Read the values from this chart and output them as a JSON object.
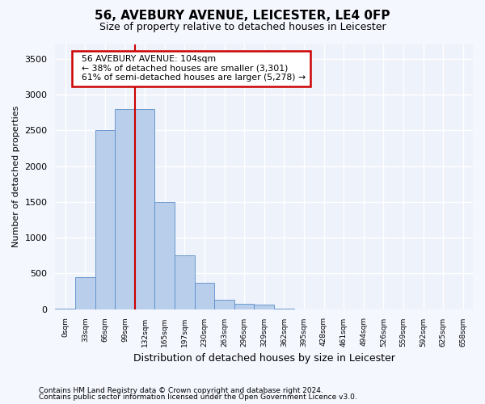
{
  "title": "56, AVEBURY AVENUE, LEICESTER, LE4 0FP",
  "subtitle": "Size of property relative to detached houses in Leicester",
  "xlabel": "Distribution of detached houses by size in Leicester",
  "ylabel": "Number of detached properties",
  "categories": [
    "0sqm",
    "33sqm",
    "66sqm",
    "99sqm",
    "132sqm",
    "165sqm",
    "197sqm",
    "230sqm",
    "263sqm",
    "296sqm",
    "329sqm",
    "362sqm",
    "395sqm",
    "428sqm",
    "461sqm",
    "494sqm",
    "526sqm",
    "559sqm",
    "592sqm",
    "625sqm",
    "658sqm"
  ],
  "bar_values": [
    10,
    450,
    2500,
    2800,
    2800,
    1500,
    750,
    370,
    130,
    70,
    60,
    10,
    0,
    0,
    0,
    0,
    0,
    0,
    0,
    0,
    0
  ],
  "bar_color": "#b8ceeb",
  "bar_edge_color": "#5b8fc9",
  "red_line_index": 4,
  "property_line_label": "56 AVEBURY AVENUE: 104sqm",
  "annotation_line1": "← 38% of detached houses are smaller (3,301)",
  "annotation_line2": "61% of semi-detached houses are larger (5,278) →",
  "annotation_box_color": "#ffffff",
  "annotation_box_edge": "#cc0000",
  "ylim": [
    0,
    3700
  ],
  "yticks": [
    0,
    500,
    1000,
    1500,
    2000,
    2500,
    3000,
    3500
  ],
  "background_color": "#eef2fb",
  "grid_color": "#ffffff",
  "footnote1": "Contains HM Land Registry data © Crown copyright and database right 2024.",
  "footnote2": "Contains public sector information licensed under the Open Government Licence v3.0."
}
